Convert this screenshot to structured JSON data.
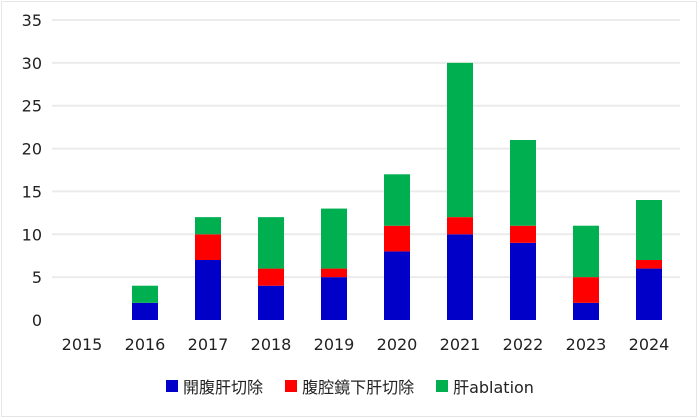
{
  "chart_data": {
    "type": "bar",
    "stacked": true,
    "title": "",
    "xlabel": "",
    "ylabel": "",
    "ylim": [
      0,
      35
    ],
    "yticks": [
      0,
      5,
      10,
      15,
      20,
      25,
      30,
      35
    ],
    "grid": true,
    "legend_position": "bottom",
    "categories": [
      "2015",
      "2016",
      "2017",
      "2018",
      "2019",
      "2020",
      "2021",
      "2022",
      "2023",
      "2024"
    ],
    "series": [
      {
        "name": "開腹肝切除",
        "color": "#0000c8",
        "values": [
          0,
          2,
          7,
          4,
          5,
          8,
          10,
          9,
          2,
          6
        ]
      },
      {
        "name": "腹腔鏡下肝切除",
        "color": "#ff0000",
        "values": [
          0,
          0,
          3,
          2,
          1,
          3,
          2,
          2,
          3,
          1
        ]
      },
      {
        "name": "肝ablation",
        "color": "#00b050",
        "values": [
          0,
          2,
          2,
          6,
          7,
          6,
          18,
          10,
          6,
          7
        ]
      }
    ]
  }
}
